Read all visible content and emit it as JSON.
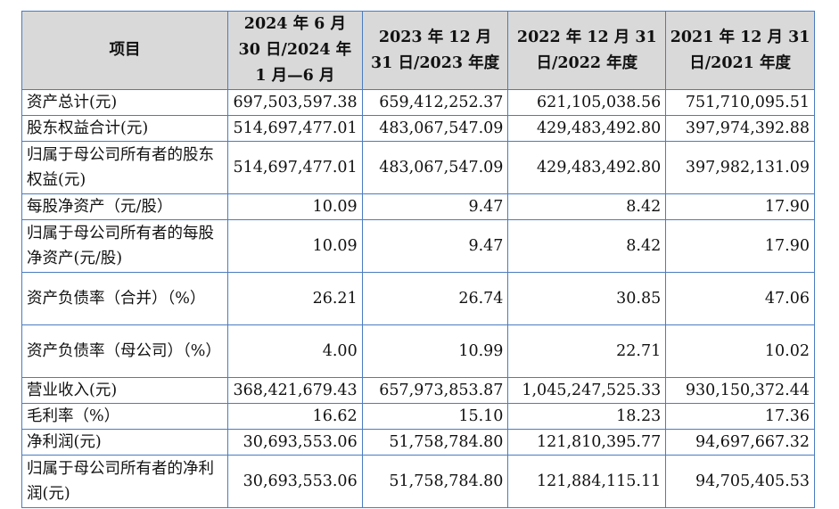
{
  "table": {
    "headers": [
      "项目",
      "2024 年 6 月 30 日/2024 年 1 月—6 月",
      "2023 年 12 月 31 日/2023 年度",
      "2022 年 12 月 31 日/2022 年度",
      "2021 年 12 月 31 日/2021 年度"
    ],
    "rows": [
      {
        "label": "资产总计(元)",
        "values": [
          "697,503,597.38",
          "659,412,252.37",
          "621,105,038.56",
          "751,710,095.51"
        ]
      },
      {
        "label": "股东权益合计(元)",
        "values": [
          "514,697,477.01",
          "483,067,547.09",
          "429,483,492.80",
          "397,974,392.88"
        ]
      },
      {
        "label": "归属于母公司所有者的股东权益(元)",
        "values": [
          "514,697,477.01",
          "483,067,547.09",
          "429,483,492.80",
          "397,982,131.09"
        ]
      },
      {
        "label": "每股净资产（元/股）",
        "values": [
          "10.09",
          "9.47",
          "8.42",
          "17.90"
        ]
      },
      {
        "label": "归属于母公司所有者的每股净资产(元/股)",
        "values": [
          "10.09",
          "9.47",
          "8.42",
          "17.90"
        ]
      },
      {
        "label": "资产负债率（合并）（%）",
        "values": [
          "26.21",
          "26.74",
          "30.85",
          "47.06"
        ]
      },
      {
        "label": "资产负债率（母公司）（%）",
        "values": [
          "4.00",
          "10.99",
          "22.71",
          "10.02"
        ]
      },
      {
        "label": "营业收入(元)",
        "values": [
          "368,421,679.43",
          "657,973,853.87",
          "1,045,247,525.33",
          "930,150,372.44"
        ]
      },
      {
        "label": "毛利率（%）",
        "values": [
          "16.62",
          "15.10",
          "18.23",
          "17.36"
        ]
      },
      {
        "label": "净利润(元)",
        "values": [
          "30,693,553.06",
          "51,758,784.80",
          "121,810,395.77",
          "94,697,667.32"
        ]
      },
      {
        "label": "归属于母公司所有者的净利润(元)",
        "values": [
          "30,693,553.06",
          "51,758,784.80",
          "121,884,115.11",
          "94,705,405.53"
        ]
      }
    ]
  }
}
